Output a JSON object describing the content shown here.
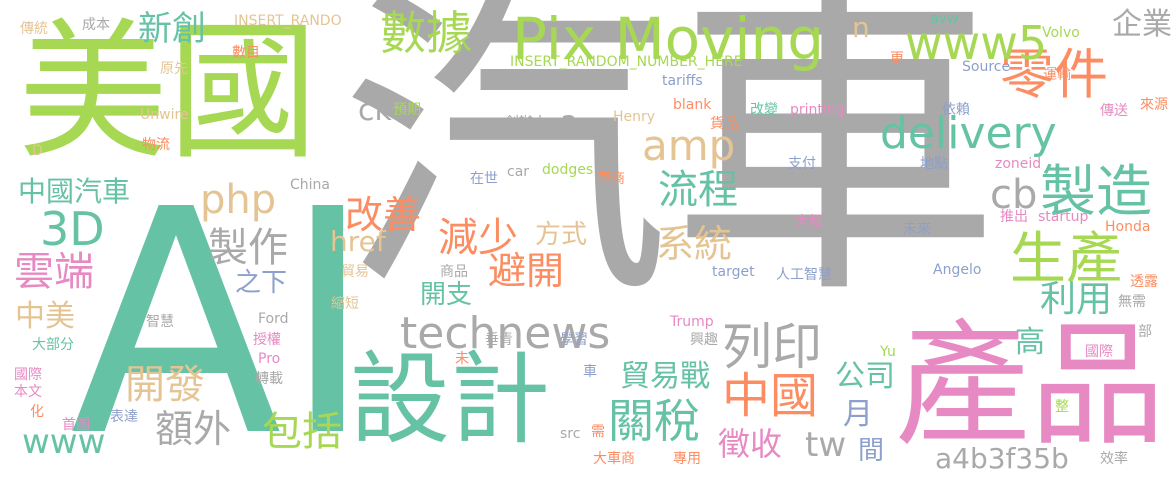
{
  "words": [
    {
      "text": "汽車",
      "color": "#a9a9a9"
    },
    {
      "text": "AI",
      "color": "#66c2a5"
    },
    {
      "text": "美國",
      "color": "#a6d854"
    },
    {
      "text": "產品",
      "color": "#e78ac3"
    },
    {
      "text": "設計",
      "color": "#66c2a5"
    },
    {
      "text": "Pix Moving",
      "color": "#a6d854"
    },
    {
      "text": "零件",
      "color": "#fc8d62"
    },
    {
      "text": "www5",
      "color": "#a6d854"
    },
    {
      "text": "delivery",
      "color": "#66c2a5"
    },
    {
      "text": "製造",
      "color": "#66c2a5"
    },
    {
      "text": "生產",
      "color": "#a6d854"
    },
    {
      "text": "數據",
      "color": "#a6d854"
    },
    {
      "text": "technews",
      "color": "#a9a9a9"
    },
    {
      "text": "列印",
      "color": "#a9a9a9"
    },
    {
      "text": "中國",
      "color": "#fc8d62"
    },
    {
      "text": "關稅",
      "color": "#66c2a5"
    },
    {
      "text": "新創",
      "color": "#66c2a5"
    },
    {
      "text": "企業",
      "color": "#a9a9a9"
    },
    {
      "text": "amp",
      "color": "#e5c494"
    },
    {
      "text": "php",
      "color": "#e5c494"
    },
    {
      "text": "3D",
      "color": "#66c2a5"
    },
    {
      "text": "中國汽車",
      "color": "#66c2a5"
    },
    {
      "text": "雲端",
      "color": "#e78ac3"
    },
    {
      "text": "製作",
      "color": "#a9a9a9"
    },
    {
      "text": "流程",
      "color": "#66c2a5"
    },
    {
      "text": "cb",
      "color": "#a9a9a9"
    },
    {
      "text": "改善",
      "color": "#fc8d62"
    },
    {
      "text": "減少",
      "color": "#fc8d62"
    },
    {
      "text": "避開",
      "color": "#fc8d62"
    },
    {
      "text": "系統",
      "color": "#e5c494"
    },
    {
      "text": "利用",
      "color": "#66c2a5"
    },
    {
      "text": "開發",
      "color": "#e5c494"
    },
    {
      "text": "包括",
      "color": "#a6d854"
    },
    {
      "text": "額外",
      "color": "#a9a9a9"
    },
    {
      "text": "www",
      "color": "#66c2a5"
    },
    {
      "text": "貿易戰",
      "color": "#66c2a5"
    },
    {
      "text": "徵收",
      "color": "#e78ac3"
    },
    {
      "text": "tw",
      "color": "#a9a9a9"
    },
    {
      "text": "a4b3f35b",
      "color": "#a9a9a9"
    },
    {
      "text": "公司",
      "color": "#66c2a5"
    },
    {
      "text": "高",
      "color": "#66c2a5"
    },
    {
      "text": "月",
      "color": "#8da0cb"
    },
    {
      "text": "間",
      "color": "#8da0cb"
    },
    {
      "text": "中美",
      "color": "#e5c494"
    },
    {
      "text": "ck",
      "color": "#a9a9a9"
    },
    {
      "text": "a",
      "color": "#a9a9a9"
    },
    {
      "text": "href",
      "color": "#e5c494"
    },
    {
      "text": "方式",
      "color": "#e5c494"
    },
    {
      "text": "開支",
      "color": "#66c2a5"
    },
    {
      "text": "之下",
      "color": "#8da0cb"
    },
    {
      "text": "n",
      "color": "#e5c494"
    },
    {
      "text": "傳統",
      "color": "#e5c494"
    },
    {
      "text": "成本",
      "color": "#a9a9a9"
    },
    {
      "text": "數目",
      "color": "#fc8d62"
    },
    {
      "text": "原先",
      "color": "#e5c494"
    },
    {
      "text": "Unwire",
      "color": "#e5c494"
    },
    {
      "text": "物流",
      "color": "#fc8d62"
    },
    {
      "text": "D",
      "color": "#e5c494"
    },
    {
      "text": "INSERT_RANDO",
      "color": "#e5c494"
    },
    {
      "text": "INSERT_RANDOM_NUMBER_HERE",
      "color": "#a6d854"
    },
    {
      "text": "img",
      "color": "#a9a9a9"
    },
    {
      "text": "tariffs",
      "color": "#8da0cb"
    },
    {
      "text": "預期",
      "color": "#a6d854"
    },
    {
      "text": "創辦人",
      "color": "#a9a9a9"
    },
    {
      "text": "Henry",
      "color": "#e5c494"
    },
    {
      "text": "blank",
      "color": "#fc8d62"
    },
    {
      "text": "貨品",
      "color": "#fc8d62"
    },
    {
      "text": "改變",
      "color": "#66c2a5"
    },
    {
      "text": "printing",
      "color": "#e78ac3"
    },
    {
      "text": "依賴",
      "color": "#8da0cb"
    },
    {
      "text": "avw",
      "color": "#66c2a5"
    },
    {
      "text": "Volvo",
      "color": "#a6d854"
    },
    {
      "text": "Source",
      "color": "#8da0cb"
    },
    {
      "text": "更",
      "color": "#fc8d62"
    },
    {
      "text": "運輸",
      "color": "#fc8d62"
    },
    {
      "text": "傳送",
      "color": "#e78ac3"
    },
    {
      "text": "來源",
      "color": "#fc8d62"
    },
    {
      "text": "zoneid",
      "color": "#e78ac3"
    },
    {
      "text": "推出",
      "color": "#e78ac3"
    },
    {
      "text": "startup",
      "color": "#e78ac3"
    },
    {
      "text": "Honda",
      "color": "#fc8d62"
    },
    {
      "text": "支付",
      "color": "#8da0cb"
    },
    {
      "text": "地點",
      "color": "#8da0cb"
    },
    {
      "text": "在世",
      "color": "#8da0cb"
    },
    {
      "text": "car",
      "color": "#a9a9a9"
    },
    {
      "text": "dodges",
      "color": "#a6d854"
    },
    {
      "text": "車商",
      "color": "#fc8d62"
    },
    {
      "text": "China",
      "color": "#a9a9a9"
    },
    {
      "text": "大幅",
      "color": "#e78ac3"
    },
    {
      "text": "未來",
      "color": "#8da0cb"
    },
    {
      "text": "target",
      "color": "#8da0cb"
    },
    {
      "text": "人工智慧",
      "color": "#8da0cb"
    },
    {
      "text": "Angelo",
      "color": "#8da0cb"
    },
    {
      "text": "透露",
      "color": "#fc8d62"
    },
    {
      "text": "無需",
      "color": "#a9a9a9"
    },
    {
      "text": "部",
      "color": "#a9a9a9"
    },
    {
      "text": "貿易",
      "color": "#e5c494"
    },
    {
      "text": "商品",
      "color": "#a9a9a9"
    },
    {
      "text": "縮短",
      "color": "#e5c494"
    },
    {
      "text": "智慧",
      "color": "#a9a9a9"
    },
    {
      "text": "Ford",
      "color": "#a9a9a9"
    },
    {
      "text": "授權",
      "color": "#e78ac3"
    },
    {
      "text": "垂青",
      "color": "#a9a9a9"
    },
    {
      "text": "學習",
      "color": "#8da0cb"
    },
    {
      "text": "Trump",
      "color": "#e78ac3"
    },
    {
      "text": "興趣",
      "color": "#a9a9a9"
    },
    {
      "text": "Pro",
      "color": "#e78ac3"
    },
    {
      "text": "轉載",
      "color": "#a9a9a9"
    },
    {
      "text": "大部分",
      "color": "#66c2a5"
    },
    {
      "text": "國際",
      "color": "#e78ac3"
    },
    {
      "text": "本文",
      "color": "#e78ac3"
    },
    {
      "text": "化",
      "color": "#fc8d62"
    },
    {
      "text": "首圖",
      "color": "#e78ac3"
    },
    {
      "text": "表達",
      "color": "#8da0cb"
    },
    {
      "text": "未",
      "color": "#fc8d62"
    },
    {
      "text": "車",
      "color": "#8da0cb"
    },
    {
      "text": "src",
      "color": "#a9a9a9"
    },
    {
      "text": "需",
      "color": "#fc8d62"
    },
    {
      "text": "大車商",
      "color": "#fc8d62"
    },
    {
      "text": "專用",
      "color": "#fc8d62"
    },
    {
      "text": "Yu",
      "color": "#a6d854"
    },
    {
      "text": "國際",
      "color": "#e78ac3"
    },
    {
      "text": "整",
      "color": "#a6d854"
    },
    {
      "text": "效率",
      "color": "#a9a9a9"
    }
  ]
}
